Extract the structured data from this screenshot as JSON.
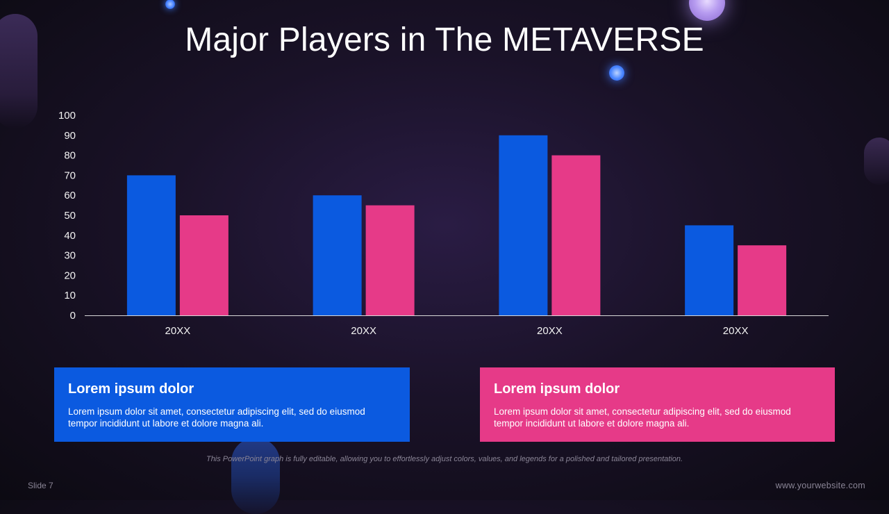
{
  "title": "Major Players in The METAVERSE",
  "colors": {
    "blue": "#0b5ae0",
    "pink": "#e63a88",
    "background": "#1a1228"
  },
  "chart_data": {
    "type": "bar",
    "categories": [
      "20XX",
      "20XX",
      "20XX",
      "20XX"
    ],
    "series": [
      {
        "values": [
          70,
          60,
          90,
          45
        ],
        "color": "#0b5ae0"
      },
      {
        "values": [
          50,
          55,
          80,
          35
        ],
        "color": "#e63a88"
      }
    ],
    "yticks": [
      "0",
      "10",
      "20",
      "30",
      "40",
      "50",
      "60",
      "70",
      "80",
      "90",
      "100"
    ],
    "ylim": [
      0,
      100
    ],
    "grid": false,
    "legend": "none"
  },
  "cards": [
    {
      "heading": "Lorem ipsum dolor",
      "body": "Lorem ipsum dolor sit amet, consectetur adipiscing elit, sed do eiusmod tempor incididunt ut labore et dolore magna ali."
    },
    {
      "heading": "Lorem ipsum dolor",
      "body": "Lorem ipsum dolor sit amet, consectetur adipiscing elit, sed do eiusmod tempor incididunt ut labore et dolore magna ali."
    }
  ],
  "footnote": "This PowerPoint graph is fully editable, allowing you to effortlessly adjust colors, values, and legends for a polished and tailored presentation.",
  "slide_number": "Slide 7",
  "website": "www.yourwebsite.com"
}
